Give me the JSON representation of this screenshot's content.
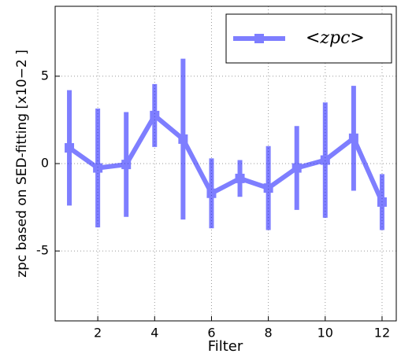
{
  "chart_data": {
    "type": "errorbar_line",
    "x_label": "Filter",
    "y_label": "zpc based on SED-fitting [x10−2 ]",
    "x": [
      1,
      2,
      3,
      4,
      5,
      6,
      7,
      8,
      9,
      10,
      11,
      12
    ],
    "series": [
      {
        "name": "<zpc>",
        "color": "#0000ff",
        "alpha": 0.5,
        "values": [
          0.9,
          -0.25,
          -0.05,
          2.75,
          1.4,
          -1.7,
          -0.85,
          -1.4,
          -0.25,
          0.2,
          1.45,
          -2.2
        ],
        "errors": [
          3.3,
          3.4,
          3.0,
          1.8,
          4.6,
          2.0,
          1.05,
          2.4,
          2.4,
          3.3,
          3.0,
          1.6
        ]
      }
    ],
    "xlim": [
      0.5,
      12.5
    ],
    "ylim": [
      -9,
      9
    ],
    "xticks": [
      2,
      4,
      6,
      8,
      10,
      12
    ],
    "yticks": [
      -5,
      0,
      5
    ],
    "grid": true,
    "legend": "upper right"
  }
}
